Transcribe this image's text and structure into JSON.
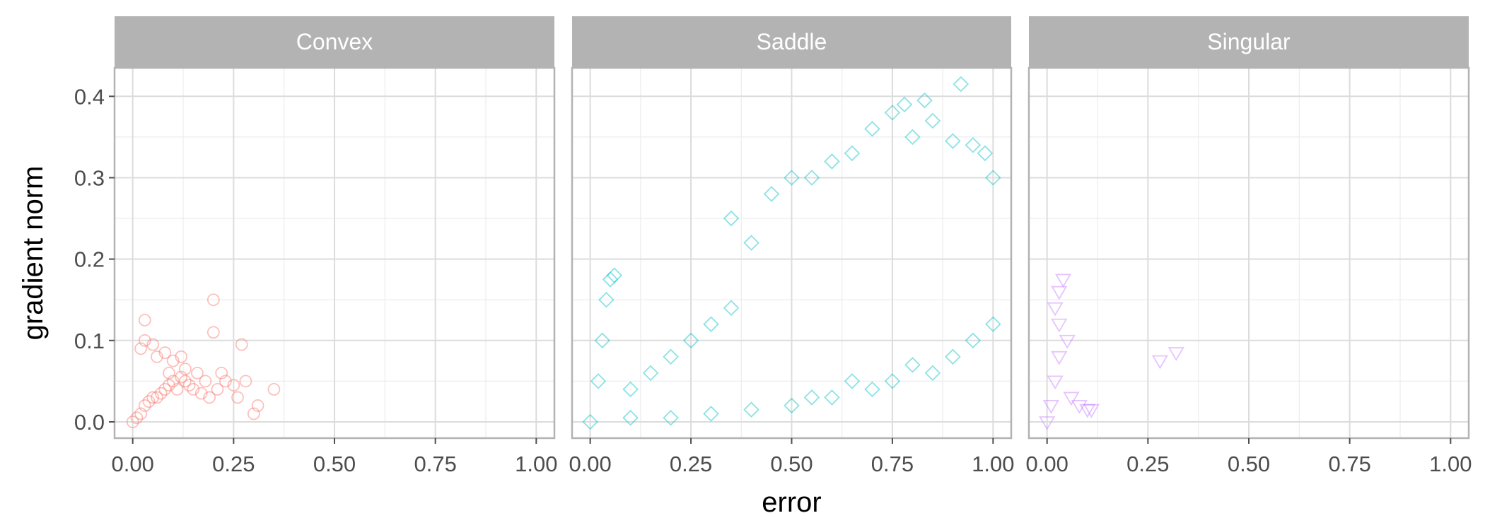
{
  "chart_data": {
    "type": "scatter",
    "xlabel": "error",
    "ylabel": "gradient norm",
    "xlim": [
      -0.045,
      1.045
    ],
    "ylim": [
      -0.02,
      0.435
    ],
    "x_ticks": [
      0.0,
      0.25,
      0.5,
      0.75,
      1.0
    ],
    "x_tick_labels": [
      "0.00",
      "0.25",
      "0.50",
      "0.75",
      "1.00"
    ],
    "y_ticks": [
      0.0,
      0.1,
      0.2,
      0.3,
      0.4
    ],
    "y_tick_labels": [
      "0.0",
      "0.1",
      "0.2",
      "0.3",
      "0.4"
    ],
    "grid": true,
    "legend": "none",
    "facets": [
      {
        "name": "Convex",
        "color": "#F8766D",
        "marker": "circle",
        "points": [
          [
            0.0,
            0.0
          ],
          [
            0.01,
            0.005
          ],
          [
            0.02,
            0.01
          ],
          [
            0.03,
            0.02
          ],
          [
            0.04,
            0.025
          ],
          [
            0.05,
            0.03
          ],
          [
            0.06,
            0.03
          ],
          [
            0.07,
            0.035
          ],
          [
            0.08,
            0.04
          ],
          [
            0.09,
            0.045
          ],
          [
            0.1,
            0.05
          ],
          [
            0.11,
            0.04
          ],
          [
            0.12,
            0.055
          ],
          [
            0.13,
            0.05
          ],
          [
            0.14,
            0.045
          ],
          [
            0.15,
            0.04
          ],
          [
            0.16,
            0.06
          ],
          [
            0.17,
            0.035
          ],
          [
            0.18,
            0.05
          ],
          [
            0.19,
            0.03
          ],
          [
            0.2,
            0.11
          ],
          [
            0.2,
            0.15
          ],
          [
            0.21,
            0.04
          ],
          [
            0.22,
            0.06
          ],
          [
            0.23,
            0.05
          ],
          [
            0.25,
            0.045
          ],
          [
            0.26,
            0.03
          ],
          [
            0.27,
            0.095
          ],
          [
            0.28,
            0.05
          ],
          [
            0.3,
            0.01
          ],
          [
            0.31,
            0.02
          ],
          [
            0.35,
            0.04
          ],
          [
            0.02,
            0.09
          ],
          [
            0.03,
            0.1
          ],
          [
            0.03,
            0.125
          ],
          [
            0.05,
            0.095
          ],
          [
            0.06,
            0.08
          ],
          [
            0.08,
            0.085
          ],
          [
            0.1,
            0.075
          ],
          [
            0.12,
            0.08
          ],
          [
            0.13,
            0.065
          ],
          [
            0.09,
            0.06
          ]
        ]
      },
      {
        "name": "Saddle",
        "color": "#00BFC4",
        "marker": "diamond",
        "points": [
          [
            0.0,
            0.0
          ],
          [
            0.02,
            0.05
          ],
          [
            0.03,
            0.1
          ],
          [
            0.04,
            0.15
          ],
          [
            0.05,
            0.175
          ],
          [
            0.06,
            0.18
          ],
          [
            0.1,
            0.04
          ],
          [
            0.15,
            0.06
          ],
          [
            0.2,
            0.08
          ],
          [
            0.25,
            0.1
          ],
          [
            0.3,
            0.12
          ],
          [
            0.35,
            0.14
          ],
          [
            0.35,
            0.25
          ],
          [
            0.4,
            0.22
          ],
          [
            0.45,
            0.28
          ],
          [
            0.5,
            0.3
          ],
          [
            0.55,
            0.3
          ],
          [
            0.6,
            0.32
          ],
          [
            0.65,
            0.33
          ],
          [
            0.7,
            0.36
          ],
          [
            0.75,
            0.38
          ],
          [
            0.78,
            0.39
          ],
          [
            0.8,
            0.35
          ],
          [
            0.83,
            0.395
          ],
          [
            0.85,
            0.37
          ],
          [
            0.9,
            0.345
          ],
          [
            0.92,
            0.415
          ],
          [
            0.95,
            0.34
          ],
          [
            0.98,
            0.33
          ],
          [
            1.0,
            0.3
          ],
          [
            1.0,
            0.12
          ],
          [
            0.95,
            0.1
          ],
          [
            0.9,
            0.08
          ],
          [
            0.85,
            0.06
          ],
          [
            0.8,
            0.07
          ],
          [
            0.75,
            0.05
          ],
          [
            0.7,
            0.04
          ],
          [
            0.65,
            0.05
          ],
          [
            0.6,
            0.03
          ],
          [
            0.55,
            0.03
          ],
          [
            0.5,
            0.02
          ],
          [
            0.4,
            0.015
          ],
          [
            0.3,
            0.01
          ],
          [
            0.2,
            0.005
          ],
          [
            0.1,
            0.005
          ]
        ]
      },
      {
        "name": "Singular",
        "color": "#C77CFF",
        "marker": "triangle-down",
        "points": [
          [
            0.0,
            0.0
          ],
          [
            0.01,
            0.02
          ],
          [
            0.02,
            0.05
          ],
          [
            0.03,
            0.08
          ],
          [
            0.03,
            0.12
          ],
          [
            0.03,
            0.16
          ],
          [
            0.04,
            0.175
          ],
          [
            0.02,
            0.14
          ],
          [
            0.05,
            0.1
          ],
          [
            0.06,
            0.03
          ],
          [
            0.08,
            0.02
          ],
          [
            0.1,
            0.015
          ],
          [
            0.11,
            0.015
          ],
          [
            0.28,
            0.075
          ],
          [
            0.32,
            0.085
          ]
        ]
      }
    ]
  }
}
